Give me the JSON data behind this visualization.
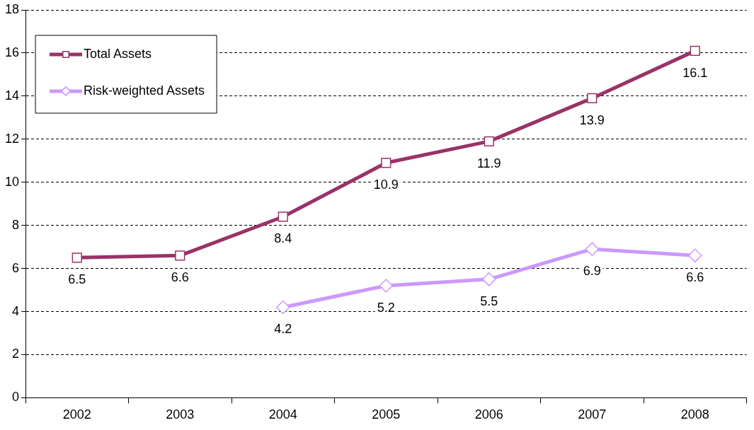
{
  "chart_data": {
    "type": "line",
    "categories": [
      "2002",
      "2003",
      "2004",
      "2005",
      "2006",
      "2007",
      "2008"
    ],
    "series": [
      {
        "name": "Total Assets",
        "color": "#993366",
        "marker": "square",
        "values": [
          6.5,
          6.6,
          8.4,
          10.9,
          11.9,
          13.9,
          16.1
        ]
      },
      {
        "name": "Risk-weighted Assets",
        "color": "#cc99ff",
        "marker": "diamond",
        "values": [
          null,
          null,
          4.2,
          5.2,
          5.5,
          6.9,
          6.6
        ]
      }
    ],
    "ylim": [
      0,
      18
    ],
    "yticks": [
      0,
      2,
      4,
      6,
      8,
      10,
      12,
      14,
      16,
      18
    ],
    "grid": "y",
    "legend": "top left",
    "data_labels": true
  }
}
